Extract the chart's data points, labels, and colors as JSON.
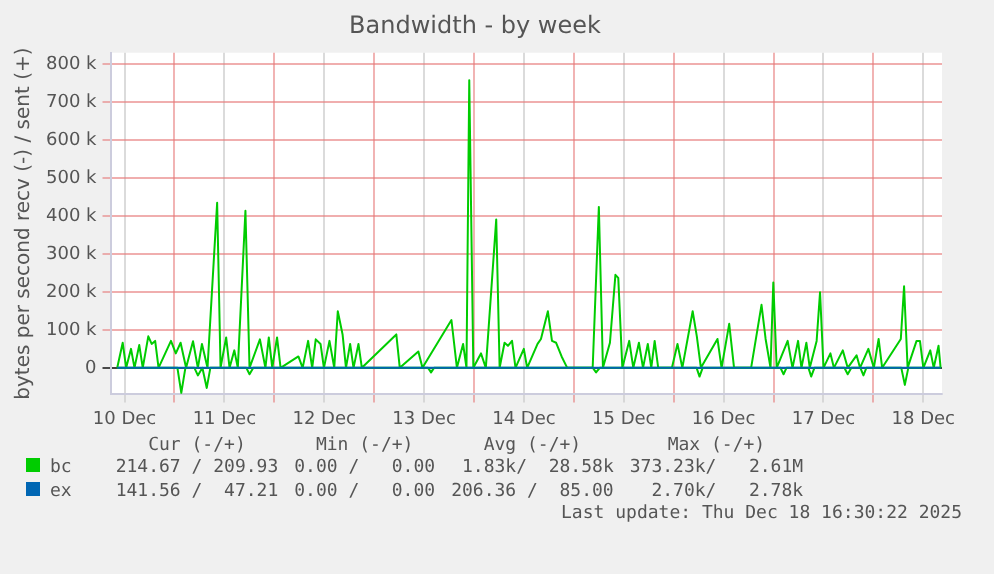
{
  "chart_data": {
    "type": "line",
    "title": "Bandwidth - by week",
    "ylabel": "bytes per second recv (-) / sent (+)",
    "xlim": [
      "2025-12-10T08:38",
      "2025-12-18T16:30"
    ],
    "xticks": [
      {
        "value": "2025-12-10T12:00",
        "label": "10 Dec"
      },
      {
        "value": "2025-12-11",
        "label": null
      },
      {
        "value": "2025-12-11T12:00",
        "label": "11 Dec"
      },
      {
        "value": "2025-12-12",
        "label": null
      },
      {
        "value": "2025-12-12T12:00",
        "label": "12 Dec"
      },
      {
        "value": "2025-12-13",
        "label": null
      },
      {
        "value": "2025-12-13T12:00",
        "label": "13 Dec"
      },
      {
        "value": "2025-12-14",
        "label": null
      },
      {
        "value": "2025-12-14T12:00",
        "label": "14 Dec"
      },
      {
        "value": "2025-12-15",
        "label": null
      },
      {
        "value": "2025-12-15T12:00",
        "label": "15 Dec"
      },
      {
        "value": "2025-12-16",
        "label": null
      },
      {
        "value": "2025-12-16T12:00",
        "label": "16 Dec"
      },
      {
        "value": "2025-12-17",
        "label": null
      },
      {
        "value": "2025-12-17T12:00",
        "label": "17 Dec"
      },
      {
        "value": "2025-12-18",
        "label": null
      },
      {
        "value": "2025-12-18T12:00",
        "label": "18 Dec"
      }
    ],
    "ylim": [
      -70000,
      830000
    ],
    "yticks": [
      0,
      {
        "value": 100000,
        "label": "100 k"
      },
      {
        "value": 200000,
        "label": "200 k"
      },
      {
        "value": 300000,
        "label": "300 k"
      },
      {
        "value": 400000,
        "label": "400 k"
      },
      {
        "value": 500000,
        "label": "500 k"
      },
      {
        "value": 600000,
        "label": "600 k"
      },
      {
        "value": 700000,
        "label": "700 k"
      },
      {
        "value": 800000,
        "label": "800 k"
      }
    ],
    "grid": true,
    "marker": "none",
    "legend": "bottom",
    "series": [
      {
        "name": "bc",
        "color": "#00cc00",
        "x": [
          "2025-12-10T10:15",
          "2025-12-10T11:34",
          "2025-12-10T12:24",
          "2025-12-10T13:34",
          "2025-12-10T14:24",
          "2025-12-10T15:33",
          "2025-12-10T16:23",
          "2025-12-10T17:43",
          "2025-12-10T18:32",
          "2025-12-10T19:22",
          "2025-12-10T20:11",
          "2025-12-10T23:10",
          "2025-12-11T00:20",
          "2025-12-11T01:29",
          "2025-12-11T02:48",
          "2025-12-11T04:28",
          "2025-12-11T05:38",
          "2025-12-11T06:37",
          "2025-12-11T07:57",
          "2025-12-11T10:16",
          "2025-12-11T11:05",
          "2025-12-11T12:26",
          "2025-12-11T13:15",
          "2025-12-11T14:24",
          "2025-12-11T15:14",
          "2025-12-11T17:04",
          "2025-12-11T18:03",
          "2025-12-11T20:33",
          "2025-12-11T21:52",
          "2025-12-11T22:41",
          "2025-12-11T23:31",
          "2025-12-12T00:40",
          "2025-12-12T01:31",
          "2025-12-12T05:48",
          "2025-12-12T06:49",
          "2025-12-12T08:08",
          "2025-12-12T09:07",
          "2025-12-12T09:58",
          "2025-12-12T11:07",
          "2025-12-12T11:56",
          "2025-12-12T13:16",
          "2025-12-12T14:25",
          "2025-12-12T15:16",
          "2025-12-12T16:25",
          "2025-12-12T17:14",
          "2025-12-12T18:14",
          "2025-12-12T19:03",
          "2025-12-12T20:14",
          "2025-12-12T21:03",
          "2025-12-13T05:20",
          "2025-12-13T06:10",
          "2025-12-13T10:38",
          "2025-12-13T11:37",
          "2025-12-13T18:35",
          "2025-12-13T19:54",
          "2025-12-13T21:23",
          "2025-12-13T22:12",
          "2025-12-13T22:52",
          "2025-12-13T23:51",
          "2025-12-14T01:41",
          "2025-12-14T02:51",
          "2025-12-14T05:21",
          "2025-12-14T06:10",
          "2025-12-14T07:21",
          "2025-12-14T08:10",
          "2025-12-14T09:09",
          "2025-12-14T09:59",
          "2025-12-14T11:59",
          "2025-12-14T12:47",
          "2025-12-14T15:17",
          "2025-12-14T16:06",
          "2025-12-14T17:46",
          "2025-12-14T18:45",
          "2025-12-14T19:45",
          "2025-12-14T21:04",
          "2025-12-14T22:25",
          "2025-12-15T04:32",
          "2025-12-15T06:01",
          "2025-12-15T07:00",
          "2025-12-15T08:41",
          "2025-12-15T10:00",
          "2025-12-15T10:41",
          "2025-12-15T11:40",
          "2025-12-15T13:19",
          "2025-12-15T14:18",
          "2025-12-15T15:39",
          "2025-12-15T16:38",
          "2025-12-15T17:47",
          "2025-12-15T18:37",
          "2025-12-15T19:26",
          "2025-12-15T20:17",
          "2025-12-15T23:35",
          "2025-12-16T00:55",
          "2025-12-16T02:05",
          "2025-12-16T04:34",
          "2025-12-16T05:34",
          "2025-12-16T06:33",
          "2025-12-16T10:32",
          "2025-12-16T11:31",
          "2025-12-16T13:21",
          "2025-12-16T14:31",
          "2025-12-16T18:37",
          "2025-12-16T21:07",
          "2025-12-16T22:06",
          "2025-12-16T23:17",
          "2025-12-16T23:57",
          "2025-12-17T00:46",
          "2025-12-17T03:24",
          "2025-12-17T04:34",
          "2025-12-17T05:54",
          "2025-12-17T06:43",
          "2025-12-17T07:54",
          "2025-12-17T08:43",
          "2025-12-17T10:22",
          "2025-12-17T11:11",
          "2025-12-17T12:01",
          "2025-12-17T13:41",
          "2025-12-17T14:31",
          "2025-12-17T16:39",
          "2025-12-17T17:50",
          "2025-12-17T19:58",
          "2025-12-17T20:48",
          "2025-12-17T22:48",
          "2025-12-18T00:07",
          "2025-12-18T01:16",
          "2025-12-18T02:07",
          "2025-12-18T06:36",
          "2025-12-18T07:23",
          "2025-12-18T08:14",
          "2025-12-18T10:23",
          "2025-12-18T11:12",
          "2025-12-18T12:01",
          "2025-12-18T13:41",
          "2025-12-18T14:31",
          "2025-12-18T15:40",
          "2025-12-18T16:10"
        ],
        "values": [
          0,
          66000,
          0,
          50000,
          0,
          60000,
          0,
          83000,
          63000,
          71000,
          0,
          71000,
          38000,
          66000,
          0,
          70000,
          0,
          63000,
          0,
          435000,
          0,
          80000,
          0,
          46000,
          0,
          414000,
          0,
          75000,
          0,
          80000,
          0,
          80000,
          0,
          30000,
          0,
          71000,
          0,
          75000,
          63000,
          0,
          71000,
          0,
          149000,
          88000,
          0,
          63000,
          0,
          63000,
          0,
          88000,
          0,
          43000,
          0,
          126000,
          0,
          63000,
          0,
          758000,
          0,
          38000,
          0,
          391000,
          0,
          66000,
          58000,
          71000,
          0,
          50000,
          0,
          63000,
          76000,
          149000,
          71000,
          66000,
          30000,
          0,
          0,
          424000,
          0,
          66000,
          245000,
          237000,
          0,
          71000,
          0,
          66000,
          0,
          63000,
          0,
          71000,
          0,
          0,
          63000,
          0,
          149000,
          83000,
          0,
          76000,
          0,
          116000,
          0,
          0,
          166000,
          76000,
          0,
          225000,
          0,
          71000,
          0,
          71000,
          0,
          66000,
          0,
          71000,
          199000,
          0,
          38000,
          0,
          46000,
          0,
          33000,
          0,
          50000,
          0,
          76000,
          0,
          76000,
          215000,
          0,
          71000,
          71000,
          0,
          46000,
          0,
          58000,
          0
        ]
      },
      {
        "color": "#00cc00",
        "x": [
          "2025-12-10T10:15",
          "2025-12-11T00:43",
          "2025-12-11T01:39",
          "2025-12-11T02:38",
          "2025-12-11T04:48",
          "2025-12-11T05:38",
          "2025-12-11T06:43",
          "2025-12-11T07:46",
          "2025-12-11T08:38",
          "2025-12-11T17:17",
          "2025-12-11T18:03",
          "2025-12-11T18:58",
          "2025-12-13T12:58",
          "2025-12-13T13:41",
          "2025-12-13T14:24",
          "2025-12-15T04:34",
          "2025-12-15T05:21",
          "2025-12-15T06:14",
          "2025-12-16T05:31",
          "2025-12-16T06:13",
          "2025-12-16T06:58",
          "2025-12-17T01:41",
          "2025-12-17T02:25",
          "2025-12-17T03:07",
          "2025-12-17T08:24",
          "2025-12-17T09:03",
          "2025-12-17T09:50",
          "2025-12-17T17:02",
          "2025-12-17T17:50",
          "2025-12-17T18:43",
          "2025-12-17T20:53",
          "2025-12-17T21:37",
          "2025-12-17T22:19",
          "2025-12-18T06:43",
          "2025-12-18T07:34",
          "2025-12-18T08:24",
          "2025-12-18T16:10"
        ],
        "values": [
          0,
          0,
          -66000,
          0,
          0,
          -20000,
          0,
          -53000,
          0,
          0,
          -17000,
          0,
          0,
          -12000,
          0,
          0,
          -12000,
          0,
          0,
          -23000,
          0,
          0,
          -17000,
          0,
          0,
          -23000,
          0,
          0,
          -17000,
          0,
          0,
          -20000,
          0,
          0,
          -45000,
          0,
          0
        ]
      },
      {
        "name": "ex",
        "color": "#0066b3",
        "x": [
          "2025-12-10T10:15",
          "2025-12-18T16:10"
        ],
        "values": [
          0,
          0
        ]
      }
    ],
    "annotations": [
      "Cur (-/+)",
      "Min (-/+)",
      "Avg (-/+)",
      "Max (-/+)",
      "214.67 / 209.93",
      "0.00 /   0.00",
      "1.83k/  28.58k",
      "373.23k/   2.61M",
      "141.56 /  47.21",
      "0.00 /   0.00",
      "206.36 /  85.00",
      "2.70k/   2.78k",
      "Last update: Thu Dec 18 16:30:22 2025"
    ]
  }
}
